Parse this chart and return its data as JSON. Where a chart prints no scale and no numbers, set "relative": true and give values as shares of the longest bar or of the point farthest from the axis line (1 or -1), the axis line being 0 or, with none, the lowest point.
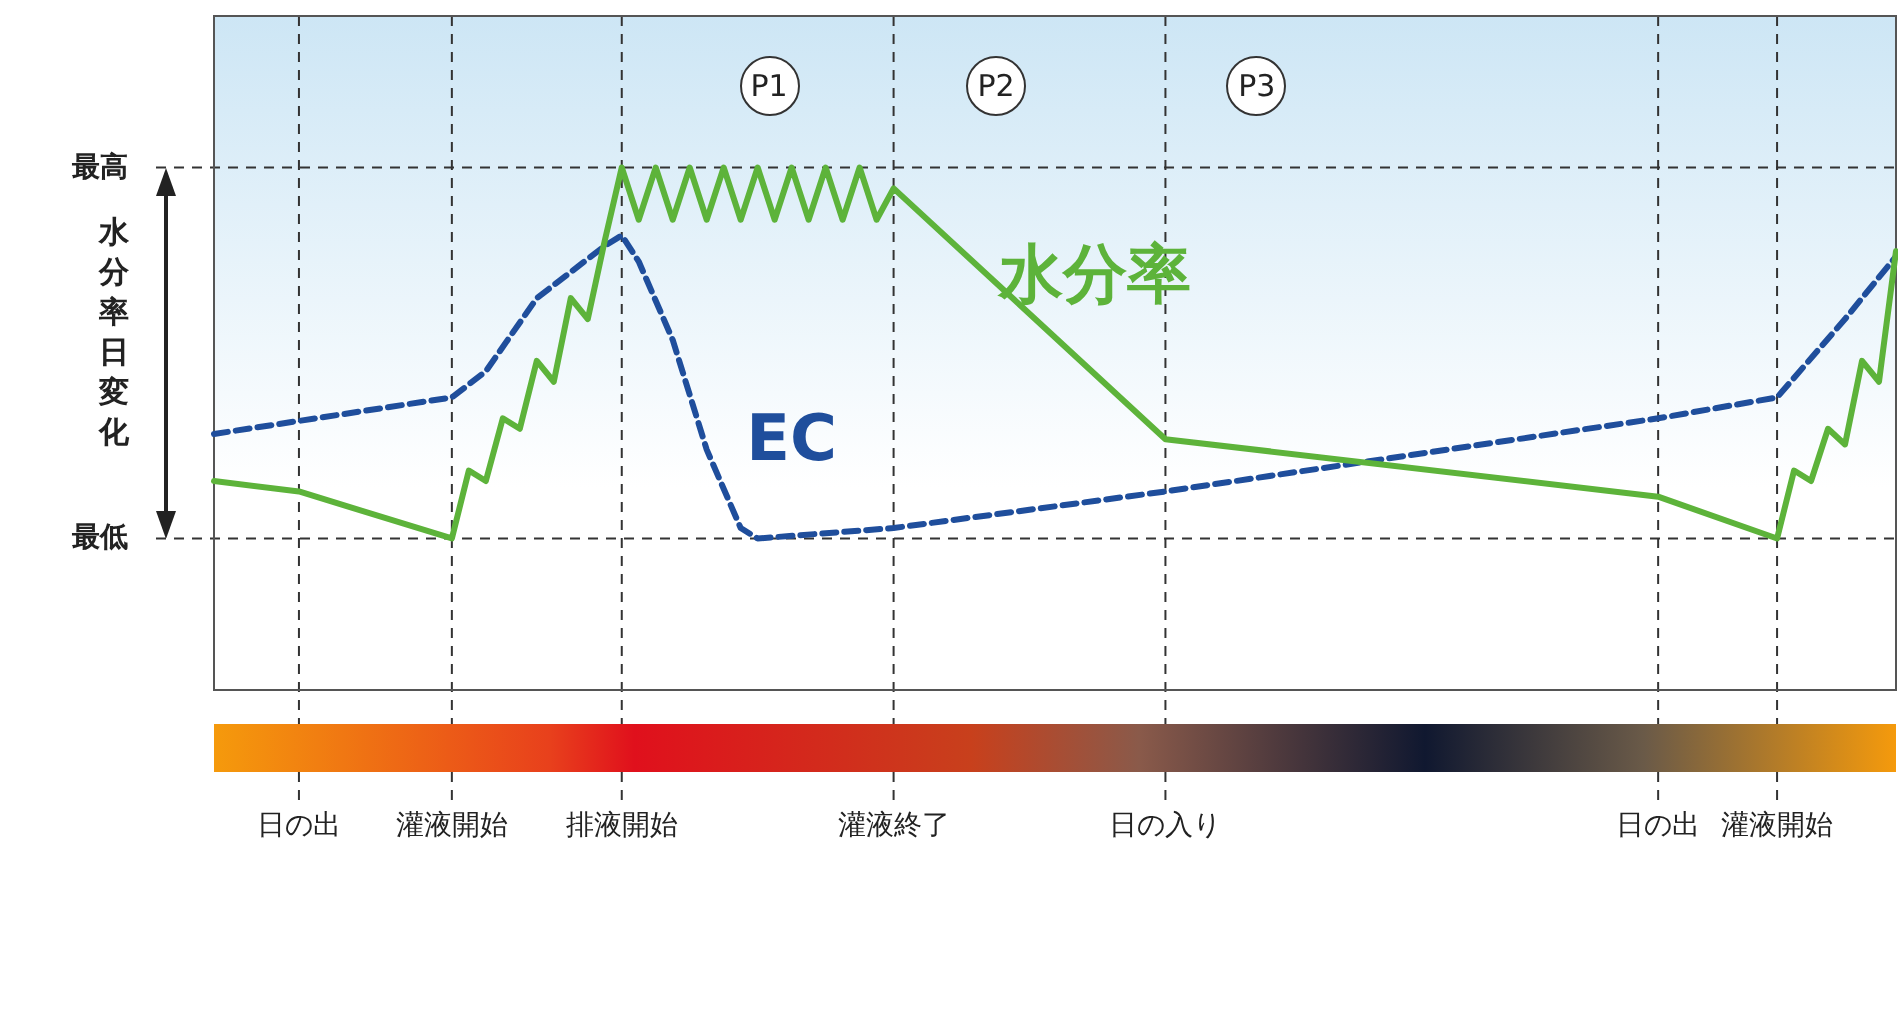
{
  "chart_data": {
    "type": "line",
    "relative": true,
    "legend": false,
    "grid": "x",
    "marker": "none",
    "categories": [
      null,
      null,
      null,
      null,
      null,
      "日の出",
      null,
      null,
      null,
      null,
      null,
      null,
      null,
      null,
      "灌液開始",
      null,
      null,
      null,
      null,
      null,
      null,
      null,
      null,
      null,
      "排液開始",
      null,
      null,
      null,
      null,
      null,
      null,
      null,
      null,
      null,
      null,
      null,
      null,
      null,
      null,
      null,
      "灌液終了",
      null,
      null,
      null,
      null,
      null,
      null,
      null,
      null,
      null,
      null,
      null,
      null,
      null,
      null,
      null,
      "日の入り",
      null,
      null,
      null,
      null,
      null,
      null,
      null,
      null,
      null,
      null,
      null,
      null,
      null,
      null,
      null,
      null,
      null,
      null,
      null,
      null,
      null,
      null,
      null,
      null,
      null,
      null,
      null,
      null,
      "日の出",
      null,
      null,
      null,
      null,
      null,
      null,
      "灌液開始",
      null,
      null,
      null,
      null,
      null,
      null,
      null
    ],
    "series": [
      {
        "name": "水分率",
        "color": "#5db33a",
        "line_style": "solid",
        "values": [
          0.4,
          null,
          null,
          null,
          null,
          0.38,
          null,
          null,
          null,
          null,
          null,
          null,
          null,
          null,
          0.29,
          0.42,
          0.4,
          0.52,
          0.5,
          0.63,
          0.59,
          0.75,
          0.71,
          0.86,
          1.0,
          0.9,
          1.0,
          0.9,
          1.0,
          0.9,
          1.0,
          0.9,
          1.0,
          0.9,
          1.0,
          0.9,
          1.0,
          0.9,
          1.0,
          0.9,
          0.96,
          null,
          null,
          null,
          null,
          null,
          null,
          null,
          null,
          null,
          null,
          null,
          null,
          null,
          null,
          null,
          0.48,
          null,
          null,
          null,
          null,
          null,
          null,
          null,
          null,
          null,
          null,
          null,
          null,
          null,
          null,
          null,
          null,
          null,
          null,
          null,
          null,
          null,
          null,
          null,
          null,
          null,
          null,
          null,
          null,
          0.37,
          null,
          null,
          null,
          null,
          null,
          null,
          0.29,
          0.42,
          0.4,
          0.5,
          0.47,
          0.63,
          0.59,
          0.84
        ]
      },
      {
        "name": "EC",
        "color": "#1f4e9c",
        "line_style": "dashed",
        "values": [
          0.49,
          null,
          null,
          null,
          null,
          null,
          null,
          null,
          null,
          null,
          null,
          null,
          null,
          null,
          0.56,
          null,
          0.61,
          null,
          null,
          0.75,
          null,
          null,
          null,
          0.85,
          0.87,
          0.82,
          null,
          0.67,
          null,
          0.46,
          null,
          0.31,
          0.29,
          null,
          null,
          null,
          null,
          null,
          null,
          null,
          0.31,
          null,
          null,
          null,
          null,
          null,
          null,
          null,
          null,
          null,
          null,
          null,
          null,
          null,
          null,
          null,
          0.38,
          null,
          null,
          null,
          null,
          null,
          null,
          null,
          null,
          null,
          null,
          null,
          null,
          null,
          null,
          null,
          null,
          null,
          null,
          null,
          null,
          null,
          null,
          null,
          null,
          null,
          null,
          null,
          null,
          0.52,
          null,
          null,
          null,
          null,
          null,
          null,
          0.56,
          null,
          null,
          null,
          0.71,
          null,
          null,
          0.83
        ]
      }
    ],
    "annotations": [
      "水分率日変化",
      "最高",
      "最低",
      "P1",
      "P2",
      "P3"
    ]
  }
}
